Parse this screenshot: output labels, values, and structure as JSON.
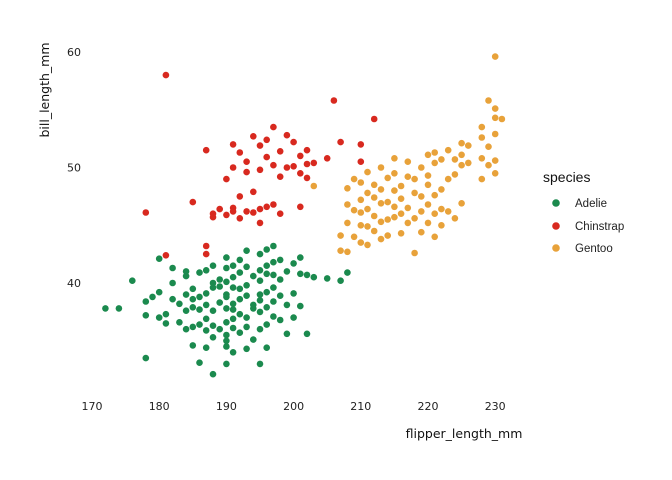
{
  "chart_data": {
    "type": "scatter",
    "title": "",
    "xlabel": "flipper_length_mm",
    "ylabel": "bill_length_mm",
    "xlim": [
      170,
      231.5
    ],
    "ylim": [
      31.5,
      61
    ],
    "xticks": [
      170,
      180,
      190,
      200,
      210,
      220,
      230
    ],
    "yticks": [
      40,
      50,
      60
    ],
    "grid": false,
    "legend": {
      "title": "species",
      "position": "right"
    },
    "series": [
      {
        "name": "Adelie",
        "color": "#1b8a4e",
        "points": [
          [
            172,
            37.8
          ],
          [
            174,
            37.8
          ],
          [
            176,
            40.2
          ],
          [
            178,
            37.2
          ],
          [
            178,
            38.4
          ],
          [
            178,
            33.5
          ],
          [
            179,
            38.8
          ],
          [
            180,
            39.2
          ],
          [
            180,
            42.1
          ],
          [
            180,
            37.0
          ],
          [
            181,
            36.5
          ],
          [
            181,
            37.3
          ],
          [
            182,
            38.6
          ],
          [
            182,
            40.0
          ],
          [
            182,
            41.3
          ],
          [
            183,
            36.6
          ],
          [
            183,
            38.2
          ],
          [
            184,
            37.6
          ],
          [
            184,
            39.0
          ],
          [
            184,
            40.6
          ],
          [
            184,
            41.0
          ],
          [
            184,
            36.0
          ],
          [
            185,
            37.9
          ],
          [
            185,
            38.6
          ],
          [
            185,
            39.5
          ],
          [
            185,
            36.2
          ],
          [
            185,
            34.6
          ],
          [
            186,
            40.9
          ],
          [
            186,
            38.8
          ],
          [
            186,
            37.7
          ],
          [
            186,
            36.4
          ],
          [
            186,
            33.1
          ],
          [
            187,
            41.1
          ],
          [
            187,
            39.1
          ],
          [
            187,
            36.9
          ],
          [
            187,
            38.1
          ],
          [
            187,
            35.9
          ],
          [
            187,
            34.4
          ],
          [
            188,
            41.5
          ],
          [
            188,
            39.6
          ],
          [
            188,
            37.6
          ],
          [
            188,
            36.3
          ],
          [
            188,
            35.3
          ],
          [
            188,
            40.0
          ],
          [
            188,
            32.1
          ],
          [
            189,
            40.3
          ],
          [
            189,
            38.3
          ],
          [
            189,
            36.0
          ],
          [
            189,
            39.7
          ],
          [
            190,
            41.3
          ],
          [
            190,
            40.1
          ],
          [
            190,
            39.0
          ],
          [
            190,
            38.8
          ],
          [
            190,
            37.8
          ],
          [
            190,
            36.6
          ],
          [
            190,
            35.5
          ],
          [
            190,
            42.2
          ],
          [
            190,
            34.5
          ],
          [
            190,
            35.0
          ],
          [
            190,
            33.0
          ],
          [
            191,
            39.6
          ],
          [
            191,
            38.2
          ],
          [
            191,
            37.7
          ],
          [
            191,
            36.9
          ],
          [
            191,
            40.5
          ],
          [
            191,
            41.5
          ],
          [
            191,
            34.0
          ],
          [
            191,
            36.1
          ],
          [
            192,
            42.0
          ],
          [
            192,
            38.6
          ],
          [
            192,
            39.5
          ],
          [
            192,
            37.3
          ],
          [
            192,
            35.7
          ],
          [
            192,
            40.9
          ],
          [
            193,
            41.4
          ],
          [
            193,
            38.9
          ],
          [
            193,
            37.0
          ],
          [
            193,
            36.2
          ],
          [
            193,
            34.3
          ],
          [
            193,
            39.8
          ],
          [
            193,
            42.8
          ],
          [
            194,
            40.6
          ],
          [
            194,
            38.1
          ],
          [
            194,
            37.8
          ],
          [
            194,
            35.1
          ],
          [
            195,
            41.1
          ],
          [
            195,
            39.0
          ],
          [
            195,
            37.5
          ],
          [
            195,
            42.5
          ],
          [
            195,
            40.2
          ],
          [
            195,
            36.0
          ],
          [
            195,
            38.5
          ],
          [
            195,
            33.0
          ],
          [
            196,
            42.9
          ],
          [
            196,
            40.8
          ],
          [
            196,
            39.2
          ],
          [
            196,
            37.9
          ],
          [
            196,
            36.4
          ],
          [
            196,
            41.5
          ],
          [
            196,
            34.4
          ],
          [
            197,
            43.2
          ],
          [
            197,
            40.7
          ],
          [
            197,
            39.6
          ],
          [
            197,
            38.4
          ],
          [
            197,
            37.1
          ],
          [
            197,
            41.8
          ],
          [
            198,
            42.0
          ],
          [
            198,
            40.3
          ],
          [
            198,
            36.8
          ],
          [
            198,
            38.9
          ],
          [
            199,
            41.0
          ],
          [
            199,
            38.1
          ],
          [
            199,
            35.6
          ],
          [
            200,
            41.7
          ],
          [
            200,
            39.1
          ],
          [
            200,
            37.0
          ],
          [
            201,
            42.2
          ],
          [
            201,
            40.8
          ],
          [
            201,
            38.0
          ],
          [
            202,
            35.6
          ],
          [
            202,
            40.7
          ],
          [
            203,
            40.5
          ],
          [
            205,
            40.4
          ],
          [
            207,
            40.2
          ],
          [
            208,
            40.9
          ]
        ]
      },
      {
        "name": "Chinstrap",
        "color": "#d8291f",
        "points": [
          [
            178,
            46.1
          ],
          [
            181,
            58.0
          ],
          [
            181,
            42.4
          ],
          [
            185,
            47.0
          ],
          [
            187,
            51.5
          ],
          [
            187,
            43.2
          ],
          [
            187,
            42.5
          ],
          [
            188,
            46.0
          ],
          [
            188,
            45.7
          ],
          [
            189,
            46.4
          ],
          [
            190,
            49.0
          ],
          [
            190,
            45.9
          ],
          [
            191,
            52.0
          ],
          [
            191,
            50.0
          ],
          [
            191,
            46.5
          ],
          [
            191,
            46.2
          ],
          [
            192,
            51.3
          ],
          [
            192,
            47.5
          ],
          [
            192,
            45.6
          ],
          [
            193,
            50.5
          ],
          [
            193,
            49.6
          ],
          [
            193,
            46.2
          ],
          [
            194,
            52.7
          ],
          [
            194,
            47.9
          ],
          [
            194,
            46.1
          ],
          [
            195,
            51.9
          ],
          [
            195,
            49.8
          ],
          [
            195,
            45.2
          ],
          [
            195,
            46.4
          ],
          [
            196,
            52.4
          ],
          [
            196,
            50.9
          ],
          [
            196,
            46.6
          ],
          [
            197,
            53.5
          ],
          [
            197,
            50.2
          ],
          [
            197,
            46.8
          ],
          [
            198,
            51.4
          ],
          [
            198,
            49.2
          ],
          [
            198,
            46.0
          ],
          [
            199,
            52.8
          ],
          [
            199,
            50.0
          ],
          [
            200,
            52.2
          ],
          [
            200,
            50.1
          ],
          [
            201,
            51.0
          ],
          [
            201,
            49.5
          ],
          [
            201,
            46.6
          ],
          [
            202,
            51.5
          ],
          [
            202,
            50.3
          ],
          [
            202,
            49.1
          ],
          [
            203,
            50.4
          ],
          [
            205,
            50.8
          ],
          [
            206,
            55.8
          ],
          [
            207,
            52.2
          ],
          [
            210,
            50.5
          ],
          [
            210,
            52.0
          ],
          [
            212,
            54.2
          ]
        ]
      },
      {
        "name": "Gentoo",
        "color": "#e8a23a",
        "points": [
          [
            203,
            48.4
          ],
          [
            207,
            42.8
          ],
          [
            207,
            44.1
          ],
          [
            208,
            42.7
          ],
          [
            208,
            45.2
          ],
          [
            208,
            46.8
          ],
          [
            208,
            48.2
          ],
          [
            209,
            44.0
          ],
          [
            209,
            46.3
          ],
          [
            209,
            49.0
          ],
          [
            210,
            43.5
          ],
          [
            210,
            45.0
          ],
          [
            210,
            46.1
          ],
          [
            210,
            47.2
          ],
          [
            210,
            48.7
          ],
          [
            211,
            43.3
          ],
          [
            211,
            44.9
          ],
          [
            211,
            46.4
          ],
          [
            211,
            47.8
          ],
          [
            211,
            49.6
          ],
          [
            212,
            44.5
          ],
          [
            212,
            45.8
          ],
          [
            212,
            47.4
          ],
          [
            212,
            48.5
          ],
          [
            213,
            43.8
          ],
          [
            213,
            45.3
          ],
          [
            213,
            46.9
          ],
          [
            213,
            48.1
          ],
          [
            213,
            50.0
          ],
          [
            214,
            44.1
          ],
          [
            214,
            45.5
          ],
          [
            214,
            47.0
          ],
          [
            214,
            49.1
          ],
          [
            215,
            45.7
          ],
          [
            215,
            46.6
          ],
          [
            215,
            48.0
          ],
          [
            215,
            49.5
          ],
          [
            215,
            50.8
          ],
          [
            216,
            44.3
          ],
          [
            216,
            46.0
          ],
          [
            216,
            47.3
          ],
          [
            216,
            48.4
          ],
          [
            217,
            45.2
          ],
          [
            217,
            46.5
          ],
          [
            217,
            49.2
          ],
          [
            217,
            50.5
          ],
          [
            218,
            42.6
          ],
          [
            218,
            45.6
          ],
          [
            218,
            47.8
          ],
          [
            218,
            49.0
          ],
          [
            219,
            44.4
          ],
          [
            219,
            46.2
          ],
          [
            219,
            47.5
          ],
          [
            219,
            50.0
          ],
          [
            220,
            45.2
          ],
          [
            220,
            46.8
          ],
          [
            220,
            48.5
          ],
          [
            220,
            49.3
          ],
          [
            220,
            51.1
          ],
          [
            221,
            44.0
          ],
          [
            221,
            46.0
          ],
          [
            221,
            47.6
          ],
          [
            221,
            50.4
          ],
          [
            221,
            51.3
          ],
          [
            222,
            45.0
          ],
          [
            222,
            46.4
          ],
          [
            222,
            48.1
          ],
          [
            222,
            50.7
          ],
          [
            223,
            46.2
          ],
          [
            223,
            49.0
          ],
          [
            223,
            51.5
          ],
          [
            224,
            45.6
          ],
          [
            224,
            49.4
          ],
          [
            224,
            50.7
          ],
          [
            225,
            46.9
          ],
          [
            225,
            50.2
          ],
          [
            225,
            51.1
          ],
          [
            225,
            52.1
          ],
          [
            226,
            50.4
          ],
          [
            226,
            51.9
          ],
          [
            228,
            49.0
          ],
          [
            228,
            50.8
          ],
          [
            228,
            52.6
          ],
          [
            228,
            53.5
          ],
          [
            229,
            50.2
          ],
          [
            229,
            51.8
          ],
          [
            229,
            55.8
          ],
          [
            230,
            49.5
          ],
          [
            230,
            50.6
          ],
          [
            230,
            52.9
          ],
          [
            230,
            54.3
          ],
          [
            230,
            55.1
          ],
          [
            230,
            59.6
          ],
          [
            231,
            54.2
          ]
        ]
      }
    ]
  }
}
